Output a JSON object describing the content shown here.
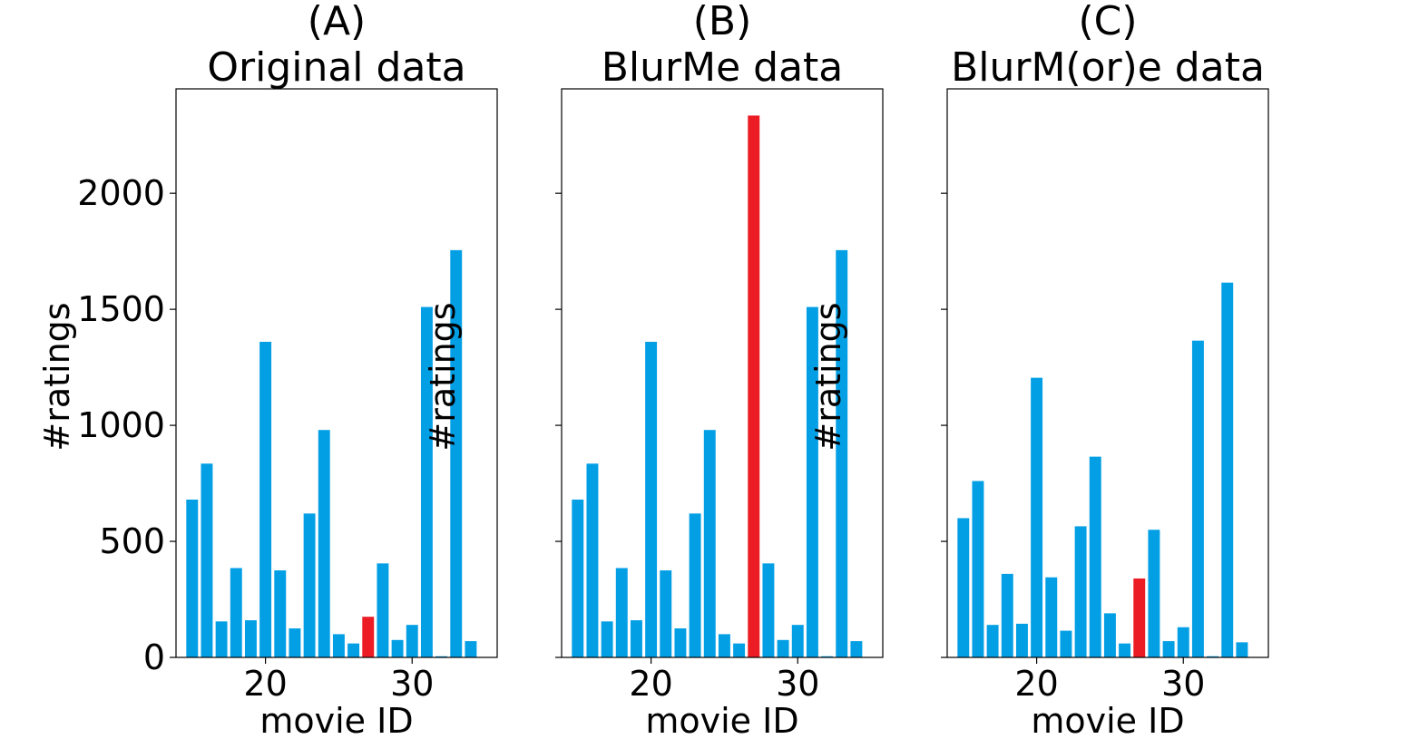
{
  "chart_data": [
    {
      "type": "bar",
      "title_letter": "(A)",
      "title": "Original data",
      "xlabel": "movie ID",
      "ylabel": "#ratings",
      "x": [
        15,
        16,
        17,
        18,
        19,
        20,
        21,
        22,
        23,
        24,
        25,
        26,
        27,
        28,
        29,
        30,
        31,
        32,
        33,
        34
      ],
      "values": [
        680,
        835,
        155,
        385,
        160,
        1360,
        375,
        125,
        620,
        980,
        100,
        60,
        175,
        405,
        75,
        140,
        1510,
        5,
        1755,
        70
      ],
      "highlight_index": 12,
      "xticks": [
        20,
        30
      ],
      "yticks": [
        0,
        500,
        1000,
        1500,
        2000
      ],
      "show_ytick_labels": true,
      "xlim": [
        13.9,
        35.8
      ],
      "ylim": [
        0,
        2450
      ]
    },
    {
      "type": "bar",
      "title_letter": "(B)",
      "title": "BlurMe data",
      "xlabel": "movie ID",
      "ylabel": "#ratings",
      "x": [
        15,
        16,
        17,
        18,
        19,
        20,
        21,
        22,
        23,
        24,
        25,
        26,
        27,
        28,
        29,
        30,
        31,
        32,
        33,
        34
      ],
      "values": [
        680,
        835,
        155,
        385,
        160,
        1360,
        375,
        125,
        620,
        980,
        100,
        60,
        2335,
        405,
        75,
        140,
        1510,
        5,
        1755,
        70
      ],
      "highlight_index": 12,
      "xticks": [
        20,
        30
      ],
      "yticks": [
        0,
        500,
        1000,
        1500,
        2000
      ],
      "show_ytick_labels": false,
      "xlim": [
        13.9,
        35.8
      ],
      "ylim": [
        0,
        2450
      ]
    },
    {
      "type": "bar",
      "title_letter": "(C)",
      "title": "BlurM(or)e data",
      "xlabel": "movie ID",
      "ylabel": "#ratings",
      "x": [
        15,
        16,
        17,
        18,
        19,
        20,
        21,
        22,
        23,
        24,
        25,
        26,
        27,
        28,
        29,
        30,
        31,
        32,
        33,
        34
      ],
      "values": [
        600,
        760,
        140,
        360,
        145,
        1205,
        345,
        115,
        565,
        865,
        190,
        60,
        340,
        550,
        70,
        130,
        1365,
        5,
        1615,
        65
      ],
      "highlight_index": 12,
      "xticks": [
        20,
        30
      ],
      "yticks": [
        0,
        500,
        1000,
        1500,
        2000
      ],
      "show_ytick_labels": false,
      "xlim": [
        13.9,
        35.8
      ],
      "ylim": [
        0,
        2450
      ]
    }
  ],
  "colors": {
    "bar": "#039fe5",
    "highlight": "#ec1c24",
    "axis": "#000000"
  }
}
